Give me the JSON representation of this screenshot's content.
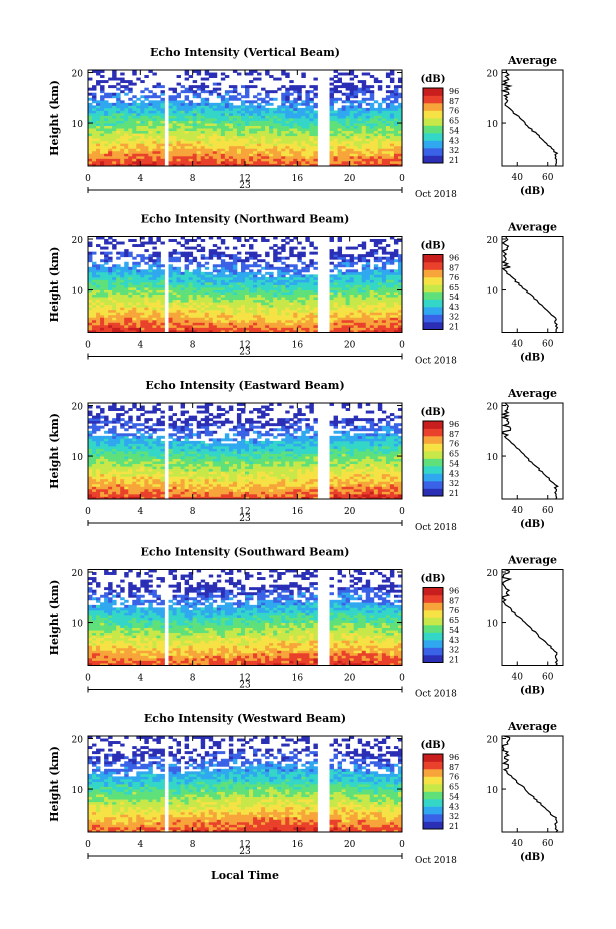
{
  "figure": {
    "xlabel": "Local Time",
    "date_label": "Oct 2018",
    "date_axis_label": "23",
    "colorbar_unit": "(dB)",
    "colorbar_ticks": [
      "96",
      "87",
      "76",
      "65",
      "54",
      "43",
      "32",
      "21"
    ],
    "average_title": "Average",
    "average_xlabel": "(dB)"
  },
  "colors": {
    "scale": [
      "#2a2fb5",
      "#3a62e6",
      "#30a8f0",
      "#34d6c8",
      "#5fe07a",
      "#c8e84a",
      "#f6e245",
      "#f7a53a",
      "#e9412b",
      "#c81e1e"
    ]
  },
  "chart_data": [
    {
      "type": "heatmap",
      "title": "Echo Intensity (Vertical Beam)",
      "ylabel": "Height (km)",
      "x_ticks": [
        "0",
        "4",
        "8",
        "12",
        "16",
        "20",
        "0"
      ],
      "xlim": [
        0,
        24
      ],
      "y_ticks": [
        "10",
        "20"
      ],
      "ylim": [
        1.5,
        20.5
      ],
      "colorbar_ticks": [
        "96",
        "87",
        "76",
        "65",
        "54",
        "43",
        "32",
        "21"
      ],
      "data_gaps_hours": [
        [
          5.8,
          6.2
        ],
        [
          17.5,
          17.8
        ],
        [
          18.0,
          18.4
        ]
      ],
      "average": {
        "x_ticks": [
          "40",
          "60"
        ],
        "xlim": [
          30,
          70
        ],
        "y_ticks": [
          "10",
          "20"
        ]
      }
    },
    {
      "type": "heatmap",
      "title": "Echo Intensity (Northward Beam)",
      "ylabel": "Height (km)",
      "x_ticks": [
        "0",
        "4",
        "8",
        "12",
        "16",
        "20",
        "0"
      ],
      "xlim": [
        0,
        24
      ],
      "y_ticks": [
        "10",
        "20"
      ],
      "ylim": [
        1.5,
        20.5
      ],
      "colorbar_ticks": [
        "96",
        "87",
        "76",
        "65",
        "54",
        "43",
        "32",
        "21"
      ],
      "data_gaps_hours": [
        [
          5.8,
          6.2
        ],
        [
          17.5,
          17.8
        ],
        [
          18.0,
          18.4
        ]
      ],
      "average": {
        "x_ticks": [
          "40",
          "60"
        ],
        "xlim": [
          30,
          70
        ],
        "y_ticks": [
          "10",
          "20"
        ]
      }
    },
    {
      "type": "heatmap",
      "title": "Echo Intensity (Eastward Beam)",
      "ylabel": "Height (km)",
      "x_ticks": [
        "0",
        "4",
        "8",
        "12",
        "16",
        "20",
        "0"
      ],
      "xlim": [
        0,
        24
      ],
      "y_ticks": [
        "10",
        "20"
      ],
      "ylim": [
        1.5,
        20.5
      ],
      "colorbar_ticks": [
        "96",
        "87",
        "76",
        "65",
        "54",
        "43",
        "32",
        "21"
      ],
      "data_gaps_hours": [
        [
          5.8,
          6.2
        ],
        [
          17.5,
          17.8
        ],
        [
          18.0,
          18.4
        ]
      ],
      "average": {
        "x_ticks": [
          "40",
          "60"
        ],
        "xlim": [
          30,
          70
        ],
        "y_ticks": [
          "10",
          "20"
        ]
      }
    },
    {
      "type": "heatmap",
      "title": "Echo Intensity (Southward Beam)",
      "ylabel": "Height (km)",
      "x_ticks": [
        "0",
        "4",
        "8",
        "12",
        "16",
        "20",
        "0"
      ],
      "xlim": [
        0,
        24
      ],
      "y_ticks": [
        "10",
        "20"
      ],
      "ylim": [
        1.5,
        20.5
      ],
      "colorbar_ticks": [
        "96",
        "87",
        "76",
        "65",
        "54",
        "43",
        "32",
        "21"
      ],
      "data_gaps_hours": [
        [
          5.8,
          6.2
        ],
        [
          17.5,
          17.8
        ],
        [
          18.0,
          18.4
        ]
      ],
      "average": {
        "x_ticks": [
          "40",
          "60"
        ],
        "xlim": [
          30,
          70
        ],
        "y_ticks": [
          "10",
          "20"
        ]
      }
    },
    {
      "type": "heatmap",
      "title": "Echo Intensity (Westward Beam)",
      "ylabel": "Height (km)",
      "x_ticks": [
        "0",
        "4",
        "8",
        "12",
        "16",
        "20",
        "0"
      ],
      "xlim": [
        0,
        24
      ],
      "y_ticks": [
        "10",
        "20"
      ],
      "ylim": [
        1.5,
        20.5
      ],
      "colorbar_ticks": [
        "96",
        "87",
        "76",
        "65",
        "54",
        "43",
        "32",
        "21"
      ],
      "data_gaps_hours": [
        [
          5.8,
          6.2
        ],
        [
          17.5,
          17.8
        ],
        [
          18.0,
          18.4
        ]
      ],
      "average": {
        "x_ticks": [
          "40",
          "60"
        ],
        "xlim": [
          30,
          70
        ],
        "y_ticks": [
          "10",
          "20"
        ]
      }
    }
  ]
}
